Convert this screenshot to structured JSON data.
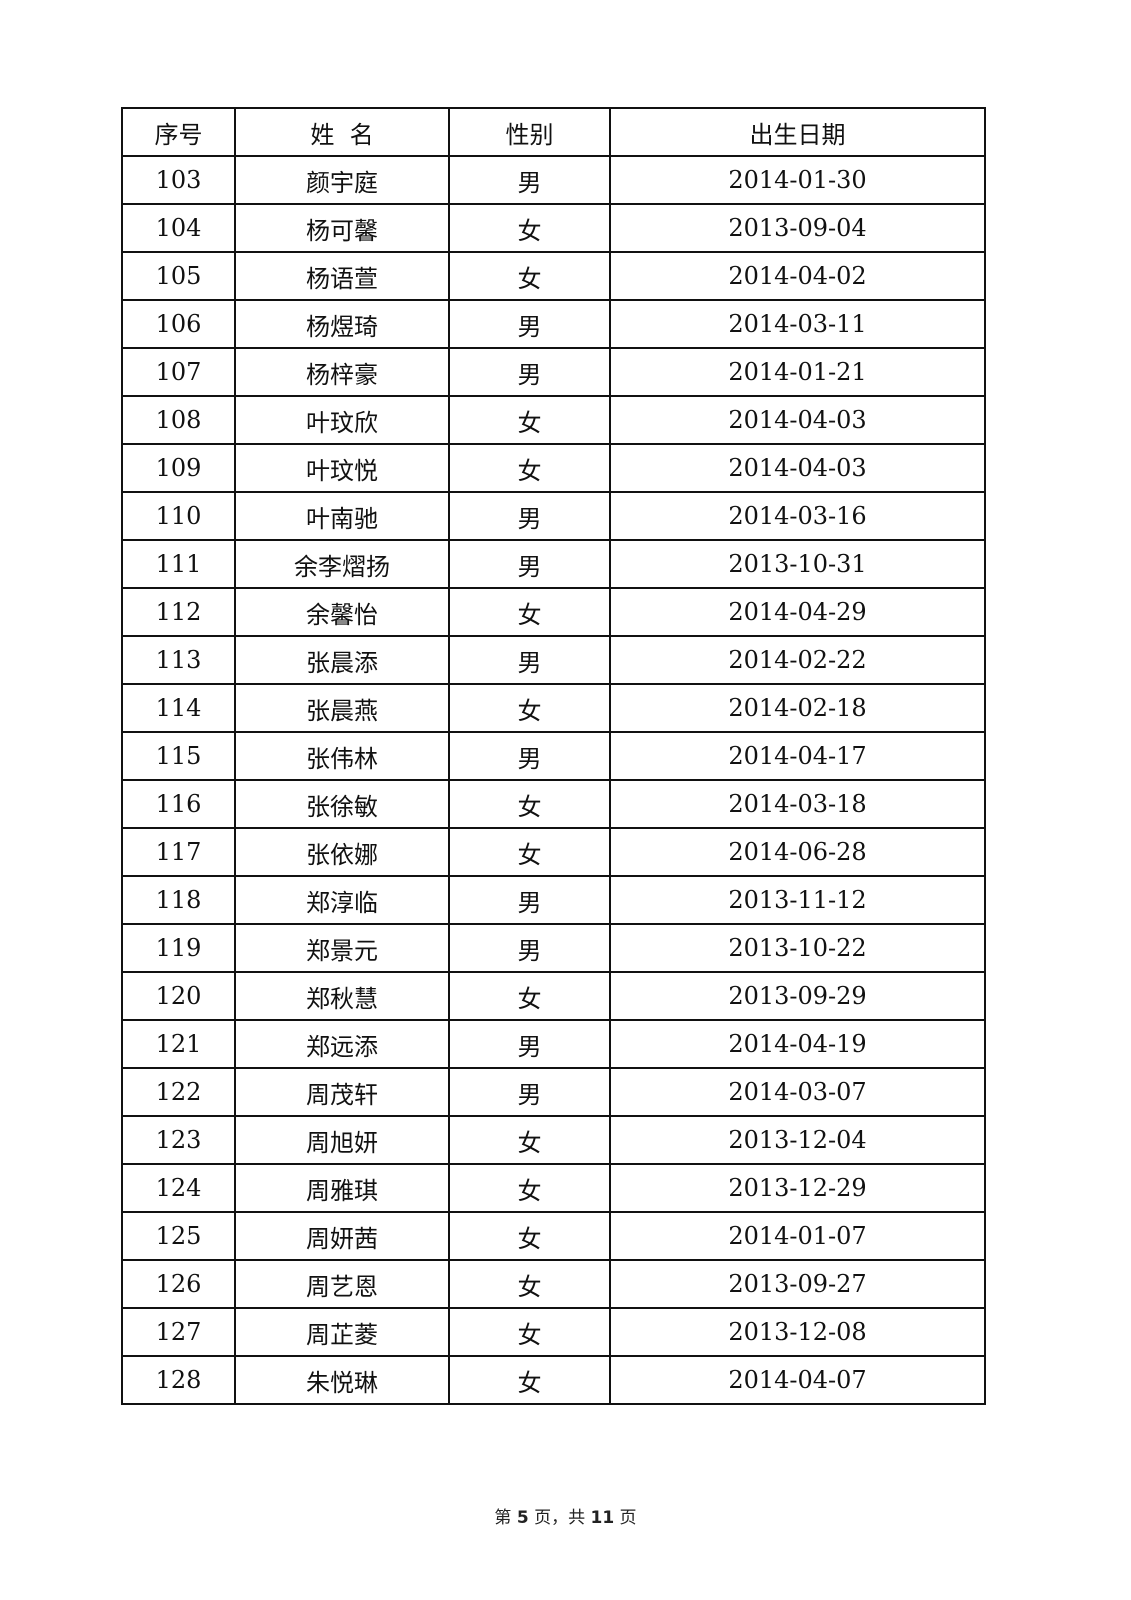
{
  "table": {
    "headers": [
      "序号",
      "姓  名",
      "性别",
      "出生日期"
    ],
    "rows": [
      [
        "103",
        "颜宇庭",
        "男",
        "2014-01-30"
      ],
      [
        "104",
        "杨可馨",
        "女",
        "2013-09-04"
      ],
      [
        "105",
        "杨语萱",
        "女",
        "2014-04-02"
      ],
      [
        "106",
        "杨煜琦",
        "男",
        "2014-03-11"
      ],
      [
        "107",
        "杨梓豪",
        "男",
        "2014-01-21"
      ],
      [
        "108",
        "叶玟欣",
        "女",
        "2014-04-03"
      ],
      [
        "109",
        "叶玟悦",
        "女",
        "2014-04-03"
      ],
      [
        "110",
        "叶南驰",
        "男",
        "2014-03-16"
      ],
      [
        "111",
        "余李熠扬",
        "男",
        "2013-10-31"
      ],
      [
        "112",
        "余馨怡",
        "女",
        "2014-04-29"
      ],
      [
        "113",
        "张晨添",
        "男",
        "2014-02-22"
      ],
      [
        "114",
        "张晨燕",
        "女",
        "2014-02-18"
      ],
      [
        "115",
        "张伟林",
        "男",
        "2014-04-17"
      ],
      [
        "116",
        "张徐敏",
        "女",
        "2014-03-18"
      ],
      [
        "117",
        "张依娜",
        "女",
        "2014-06-28"
      ],
      [
        "118",
        "郑淳临",
        "男",
        "2013-11-12"
      ],
      [
        "119",
        "郑景元",
        "男",
        "2013-10-22"
      ],
      [
        "120",
        "郑秋慧",
        "女",
        "2013-09-29"
      ],
      [
        "121",
        "郑远添",
        "男",
        "2014-04-19"
      ],
      [
        "122",
        "周茂轩",
        "男",
        "2014-03-07"
      ],
      [
        "123",
        "周旭妍",
        "女",
        "2013-12-04"
      ],
      [
        "124",
        "周雅琪",
        "女",
        "2013-12-29"
      ],
      [
        "125",
        "周妍茜",
        "女",
        "2014-01-07"
      ],
      [
        "126",
        "周艺恩",
        "女",
        "2013-09-27"
      ],
      [
        "127",
        "周芷菱",
        "女",
        "2013-12-08"
      ],
      [
        "128",
        "朱悦琳",
        "女",
        "2014-04-07"
      ]
    ]
  },
  "footer": {
    "prefix": "第 ",
    "page": "5",
    "middle": " 页，共 ",
    "total": "11",
    "suffix": " 页"
  }
}
